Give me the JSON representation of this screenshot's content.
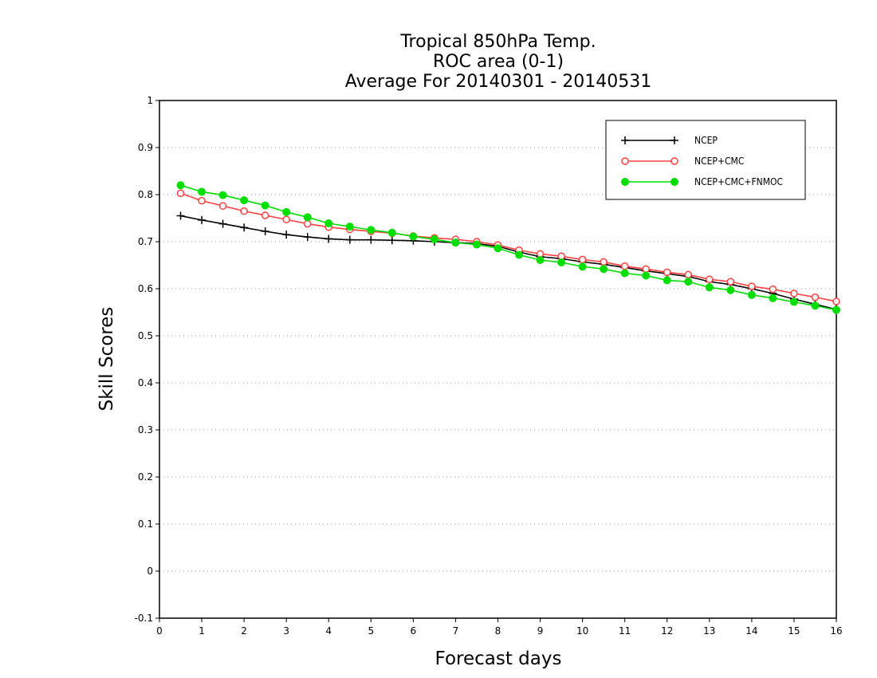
{
  "chart_data": {
    "type": "line",
    "title_lines": [
      "Tropical 850hPa Temp.",
      "ROC area (0-1)",
      "Average For 20140301 - 20140531"
    ],
    "xlabel": "Forecast days",
    "ylabel": "Skill Scores",
    "xlim": [
      0,
      16
    ],
    "ylim": [
      -0.1,
      1
    ],
    "x_ticks": [
      "0",
      "1",
      "2",
      "3",
      "4",
      "5",
      "6",
      "7",
      "8",
      "9",
      "10",
      "11",
      "12",
      "13",
      "14",
      "15",
      "16"
    ],
    "y_ticks": [
      "-0.1",
      "0",
      "0.1",
      "0.2",
      "0.3",
      "0.4",
      "0.5",
      "0.6",
      "0.7",
      "0.8",
      "0.9",
      "1"
    ],
    "grid": "horizontal dotted",
    "legend_position": "top-right",
    "x": [
      0.5,
      1,
      1.5,
      2,
      2.5,
      3,
      3.5,
      4,
      4.5,
      5,
      5.5,
      6,
      6.5,
      7,
      7.5,
      8,
      8.5,
      9,
      9.5,
      10,
      10.5,
      11,
      11.5,
      12,
      12.5,
      13,
      13.5,
      14,
      14.5,
      15,
      15.5,
      16
    ],
    "series": [
      {
        "name": "NCEP",
        "color": "#000000",
        "marker": "plus",
        "values": [
          0.755,
          0.746,
          0.738,
          0.73,
          0.722,
          0.715,
          0.71,
          0.706,
          0.704,
          0.704,
          0.703,
          0.702,
          0.7,
          0.698,
          0.696,
          0.69,
          0.678,
          0.668,
          0.664,
          0.657,
          0.652,
          0.645,
          0.638,
          0.632,
          0.626,
          0.615,
          0.609,
          0.6,
          0.59,
          0.578,
          0.567,
          0.556
        ]
      },
      {
        "name": "NCEP+CMC",
        "color": "#ff4040",
        "marker": "open-circle",
        "values": [
          0.803,
          0.787,
          0.776,
          0.765,
          0.756,
          0.747,
          0.738,
          0.731,
          0.726,
          0.722,
          0.718,
          0.712,
          0.708,
          0.705,
          0.7,
          0.693,
          0.682,
          0.674,
          0.669,
          0.662,
          0.657,
          0.648,
          0.642,
          0.635,
          0.63,
          0.62,
          0.615,
          0.605,
          0.599,
          0.59,
          0.582,
          0.573
        ]
      },
      {
        "name": "NCEP+CMC+FNMOC",
        "color": "#00dd00",
        "marker": "filled-circle",
        "values": [
          0.82,
          0.806,
          0.799,
          0.788,
          0.777,
          0.763,
          0.752,
          0.739,
          0.732,
          0.725,
          0.719,
          0.711,
          0.705,
          0.698,
          0.694,
          0.686,
          0.672,
          0.661,
          0.656,
          0.647,
          0.642,
          0.633,
          0.628,
          0.618,
          0.615,
          0.603,
          0.597,
          0.587,
          0.58,
          0.572,
          0.564,
          0.555
        ]
      }
    ]
  }
}
